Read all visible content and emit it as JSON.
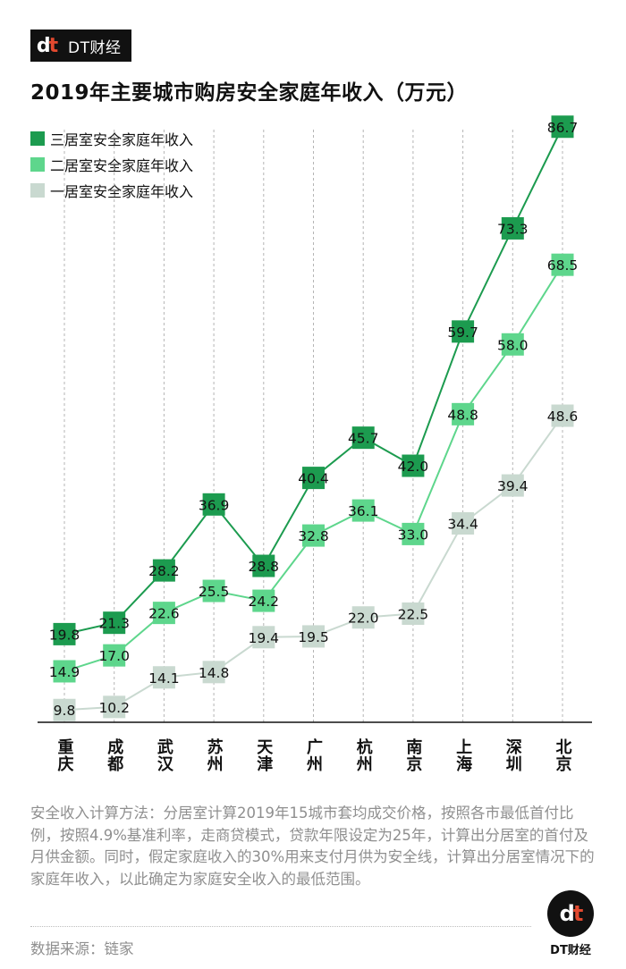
{
  "brand": {
    "logo_text": "dt",
    "name": "DT财经"
  },
  "chart_data": {
    "type": "line",
    "title": "2019年主要城市购房安全家庭年收入（万元）",
    "categories": [
      "重庆",
      "成都",
      "武汉",
      "苏州",
      "天津",
      "广州",
      "杭州",
      "南京",
      "上海",
      "深圳",
      "北京"
    ],
    "series": [
      {
        "name": "三居室安全家庭年收入",
        "color": "#1c9b4f",
        "values": [
          19.8,
          21.3,
          28.2,
          36.9,
          28.8,
          40.4,
          45.7,
          42.0,
          59.7,
          73.3,
          86.7
        ]
      },
      {
        "name": "二居室安全家庭年收入",
        "color": "#5ed68c",
        "values": [
          14.9,
          17.0,
          22.6,
          25.5,
          24.2,
          32.8,
          36.1,
          33.0,
          48.8,
          58.0,
          68.5
        ]
      },
      {
        "name": "一居室安全家庭年收入",
        "color": "#c9d9d0",
        "values": [
          9.8,
          10.2,
          14.1,
          14.8,
          19.4,
          19.5,
          22.0,
          22.5,
          34.4,
          39.4,
          48.6
        ]
      }
    ],
    "legend_position": "top-left",
    "grid": "vertical dashed lines"
  },
  "note": "安全收入计算方法：分居室计算2019年15城市套均成交价格，按照各市最低首付比例，按照4.9%基准利率，走商贷模式，贷款年限设定为25年，计算出分居室的首付及月供金额。同时，假定家庭收入的30%用来支付月供为安全线，计算出分居室情况下的家庭年收入，以此确定为家庭安全收入的最低范围。",
  "source": "数据来源：链家",
  "footer_brand": "DT财经"
}
